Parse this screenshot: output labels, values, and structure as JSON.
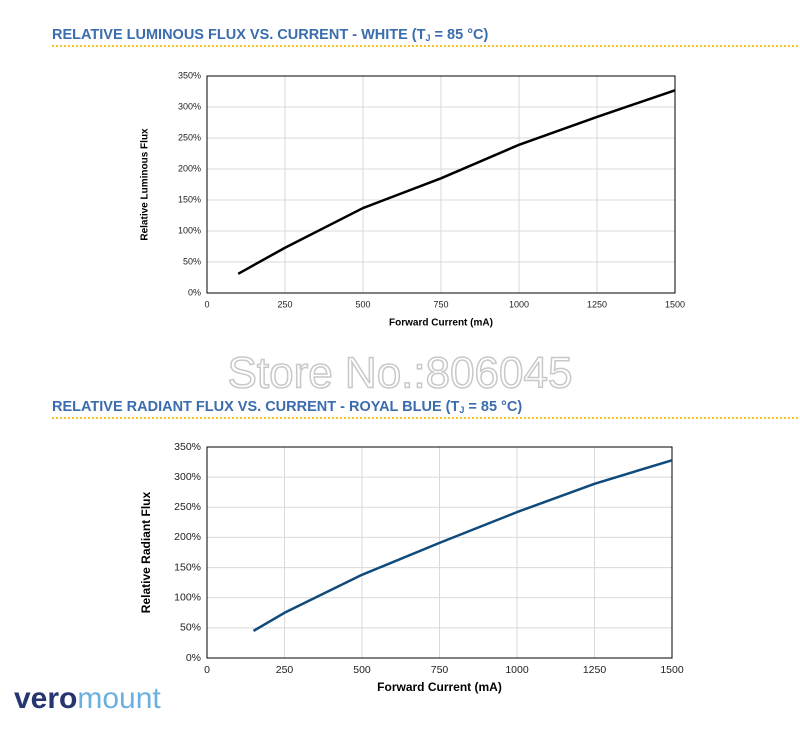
{
  "chart_data": [
    {
      "type": "line",
      "title": "RELATIVE LUMINOUS FLUX VS. CURRENT - WHITE (T",
      "title_subscript": "J",
      "title_end": " = 85 °C)",
      "x_label": "Forward Current (mA)",
      "y_label": "Relative Luminous Flux",
      "x": [
        100,
        250,
        500,
        750,
        1000,
        1250,
        1500
      ],
      "series": [
        {
          "name": "White",
          "color": "#000000",
          "values": [
            31,
            73,
            137,
            185,
            239,
            284,
            327
          ]
        }
      ],
      "xlim": [
        0,
        1500
      ],
      "xticks": [
        0,
        250,
        500,
        750,
        1000,
        1250,
        1500
      ],
      "ylim": [
        0,
        350
      ],
      "yticks": [
        {
          "value": 0,
          "label": "0%"
        },
        {
          "value": 50,
          "label": "50%"
        },
        {
          "value": 100,
          "label": "100%"
        },
        {
          "value": 150,
          "label": "150%"
        },
        {
          "value": 200,
          "label": "200%"
        },
        {
          "value": 250,
          "label": "250%"
        },
        {
          "value": 300,
          "label": "300%"
        },
        {
          "value": 350,
          "label": "350%"
        }
      ],
      "grid": true
    },
    {
      "type": "line",
      "title": "RELATIVE RADIANT FLUX VS. CURRENT - ROYAL BLUE (T",
      "title_subscript": "J",
      "title_end": " = 85 °C)",
      "x_label": "Forward Current (mA)",
      "y_label": "Relative Radiant Flux",
      "x": [
        150,
        250,
        500,
        750,
        1000,
        1250,
        1500
      ],
      "series": [
        {
          "name": "Royal Blue",
          "color": "#0e4a7b",
          "values": [
            45,
            75,
            138,
            191,
            242,
            289,
            328
          ]
        }
      ],
      "xlim": [
        0,
        1500
      ],
      "xticks": [
        0,
        250,
        500,
        750,
        1000,
        1250,
        1500
      ],
      "ylim": [
        0,
        350
      ],
      "yticks": [
        {
          "value": 0,
          "label": "0%"
        },
        {
          "value": 50,
          "label": "50%"
        },
        {
          "value": 100,
          "label": "100%"
        },
        {
          "value": 150,
          "label": "150%"
        },
        {
          "value": 200,
          "label": "200%"
        },
        {
          "value": 250,
          "label": "250%"
        },
        {
          "value": 300,
          "label": "300%"
        },
        {
          "value": 350,
          "label": "350%"
        }
      ],
      "grid": true
    }
  ],
  "watermark": "Store No.:806045",
  "logo": [
    "vero",
    "mount"
  ]
}
